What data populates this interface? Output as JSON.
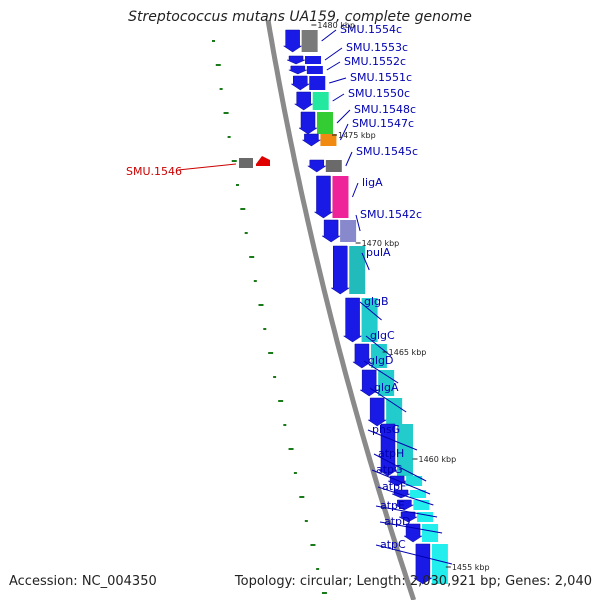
{
  "title": "Streptococcus mutans UA159, complete genome",
  "footer": {
    "accession": "Accession: NC_004350",
    "stats": "Topology: circular; Length: 2,030,921 bp; Genes: 2,040"
  },
  "colors": {
    "label_default": "#0000b0",
    "label_highlight": "#cc0000",
    "backbone": "#8a8a8a",
    "gene_strand_arrow": "#1a1ae6",
    "gc_tick": "#1a7a1a"
  },
  "scale_ticks": [
    "1480 kbp",
    "1475 kbp",
    "1470 kbp",
    "1465 kbp",
    "1460 kbp",
    "1455 kbp"
  ],
  "genes": [
    {
      "label": "SMU.1554c",
      "kind": "cog",
      "color": "#7a7a7a"
    },
    {
      "label": "SMU.1553c",
      "kind": "cds",
      "color": "#1a1ae6"
    },
    {
      "label": "SMU.1552c",
      "kind": "cds",
      "color": "#1a1ae6"
    },
    {
      "label": "SMU.1551c",
      "kind": "cds",
      "color": "#1a1ae6"
    },
    {
      "label": "SMU.1550c",
      "kind": "cog",
      "color": "#22e8a0"
    },
    {
      "label": "SMU.1548c",
      "kind": "cog",
      "color": "#33cc33"
    },
    {
      "label": "SMU.1547c",
      "kind": "cog",
      "color": "#f08a10"
    },
    {
      "label": "SMU.1546",
      "kind": "cds",
      "color": "#e00000",
      "highlight": true
    },
    {
      "label": "SMU.1545c",
      "kind": "cog",
      "color": "#6a6a6a"
    },
    {
      "label": "ligA",
      "kind": "cog",
      "color": "#ee2299"
    },
    {
      "label": "SMU.1542c",
      "kind": "cog",
      "color": "#8888cc"
    },
    {
      "label": "pulA",
      "kind": "cog",
      "color": "#22bbbb"
    },
    {
      "label": "glgB",
      "kind": "cog",
      "color": "#22cccc"
    },
    {
      "label": "glgC",
      "kind": "cog",
      "color": "#22cccc"
    },
    {
      "label": "glgD",
      "kind": "cog",
      "color": "#22cccc"
    },
    {
      "label": "glgA",
      "kind": "cog",
      "color": "#22cccc"
    },
    {
      "label": "phsG",
      "kind": "cog",
      "color": "#22cccc"
    },
    {
      "label": "atpH",
      "kind": "cog",
      "color": "#22dddd"
    },
    {
      "label": "atpG",
      "kind": "cog",
      "color": "#22eeee"
    },
    {
      "label": "atpF",
      "kind": "cog",
      "color": "#22eeee"
    },
    {
      "label": "atpE",
      "kind": "cog",
      "color": "#22eeee"
    },
    {
      "label": "atpD",
      "kind": "cog",
      "color": "#22eeee"
    },
    {
      "label": "atpC",
      "kind": "cog",
      "color": "#22eeee"
    }
  ]
}
